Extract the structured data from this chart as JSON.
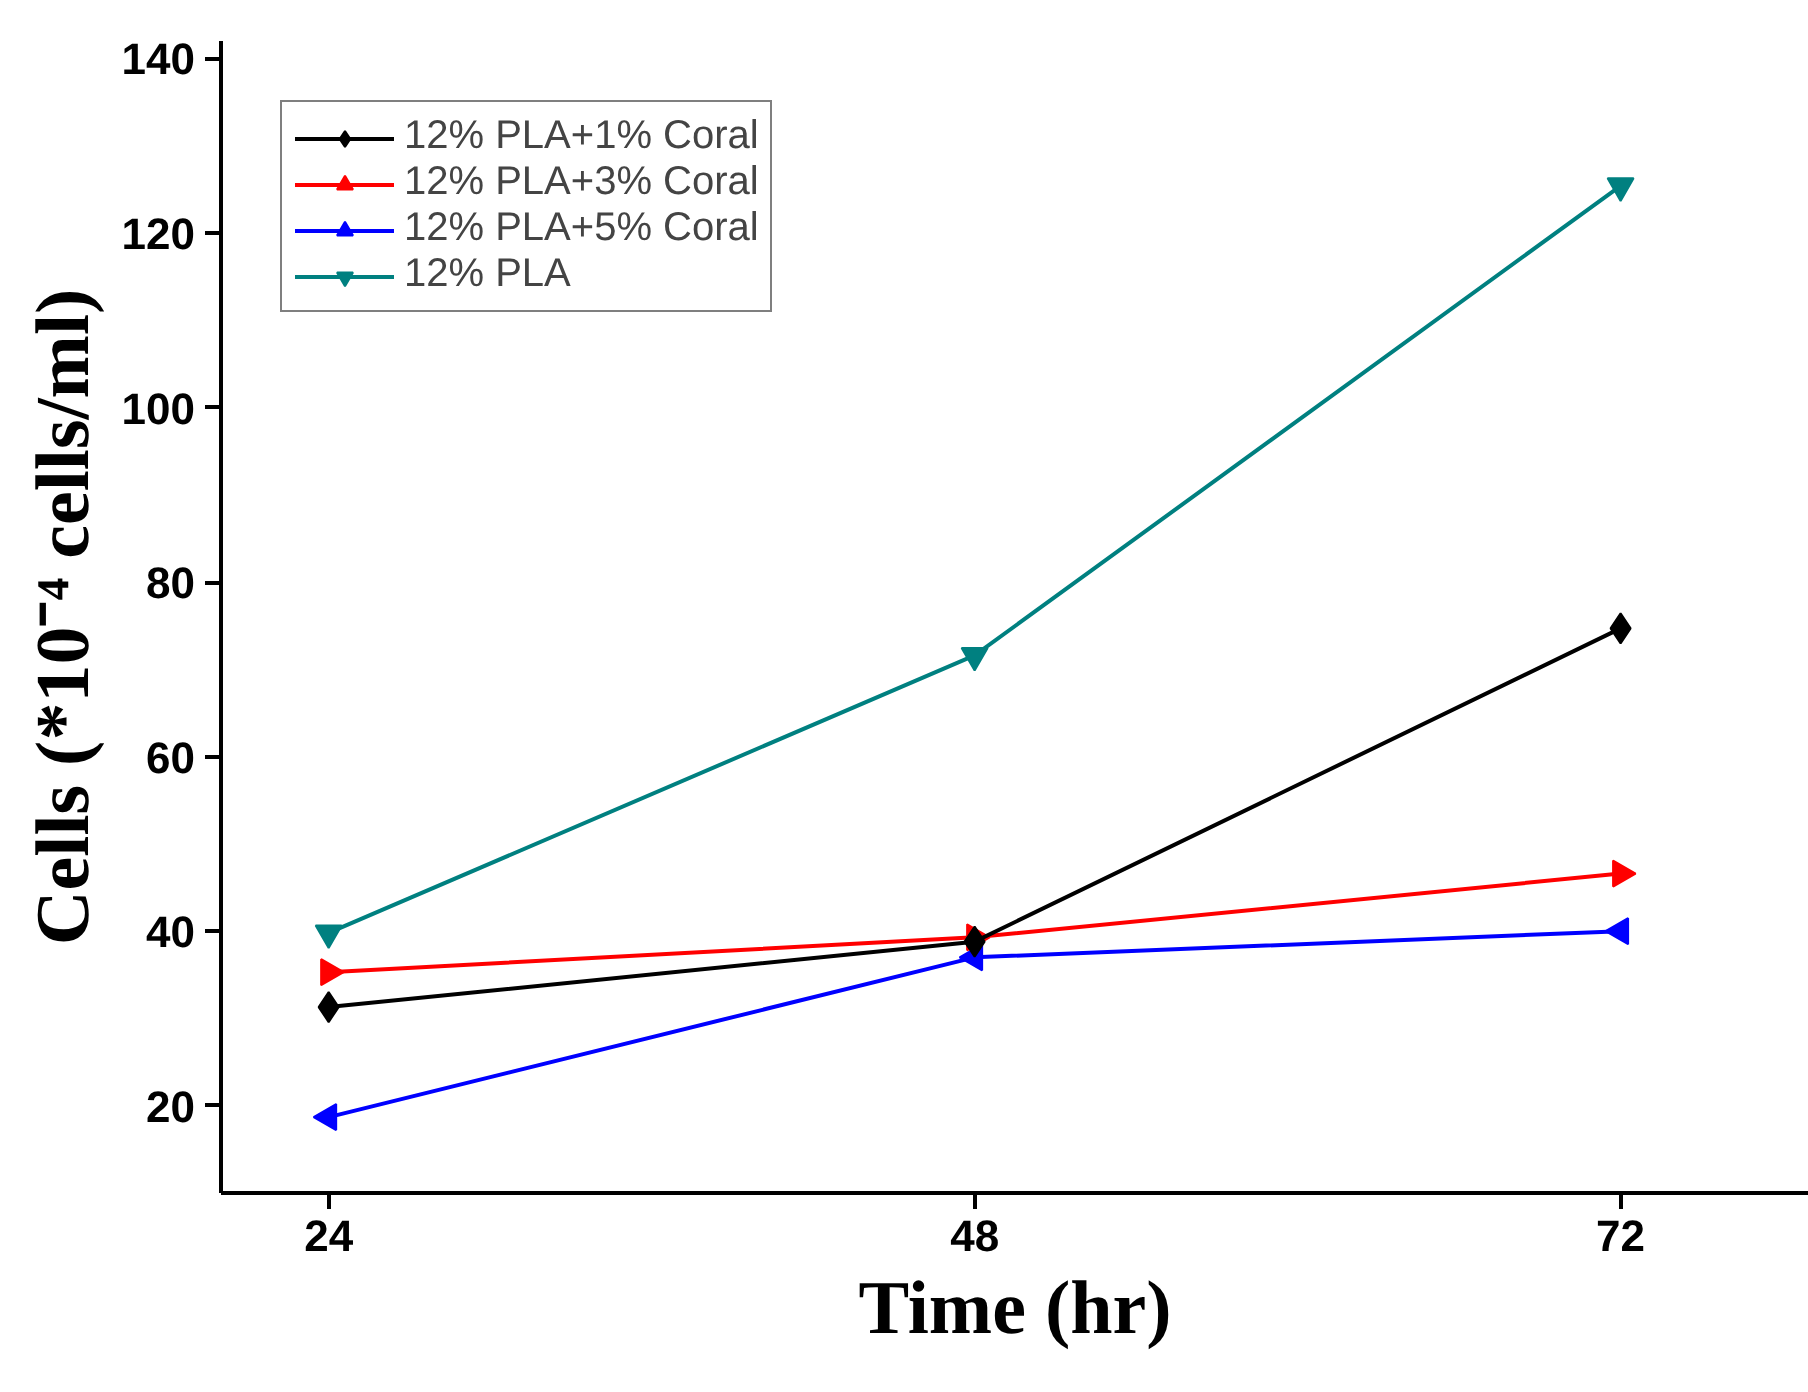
{
  "chart_data": {
    "type": "line",
    "xlabel": "Time (hr)",
    "ylabel": "Cells (*10⁻⁴ cells/ml)",
    "x": [
      24,
      48,
      72
    ],
    "series": [
      {
        "name": "12% PLA+1% Coral",
        "color": "#000000",
        "marker": "diamond",
        "values": [
          31.3,
          38.8,
          74.7
        ]
      },
      {
        "name": "12% PLA+3% Coral",
        "color": "#ff0000",
        "marker": "triangle_right",
        "values": [
          35.3,
          39.3,
          46.6
        ]
      },
      {
        "name": "12% PLA+5% Coral",
        "color": "#0000ff",
        "marker": "triangle_left",
        "values": [
          18.7,
          37,
          40
        ]
      },
      {
        "name": "12% PLA",
        "color": "#008080",
        "marker": "triangle_down",
        "values": [
          39.8,
          71.6,
          125.4
        ]
      }
    ],
    "xlim": [
      20,
      79
    ],
    "xticks": [
      24,
      48,
      72
    ],
    "ylim": [
      10,
      142
    ],
    "yticks": [
      20,
      40,
      60,
      80,
      100,
      120,
      140
    ],
    "grid": false,
    "legend": "top left",
    "line_style": "solid"
  }
}
